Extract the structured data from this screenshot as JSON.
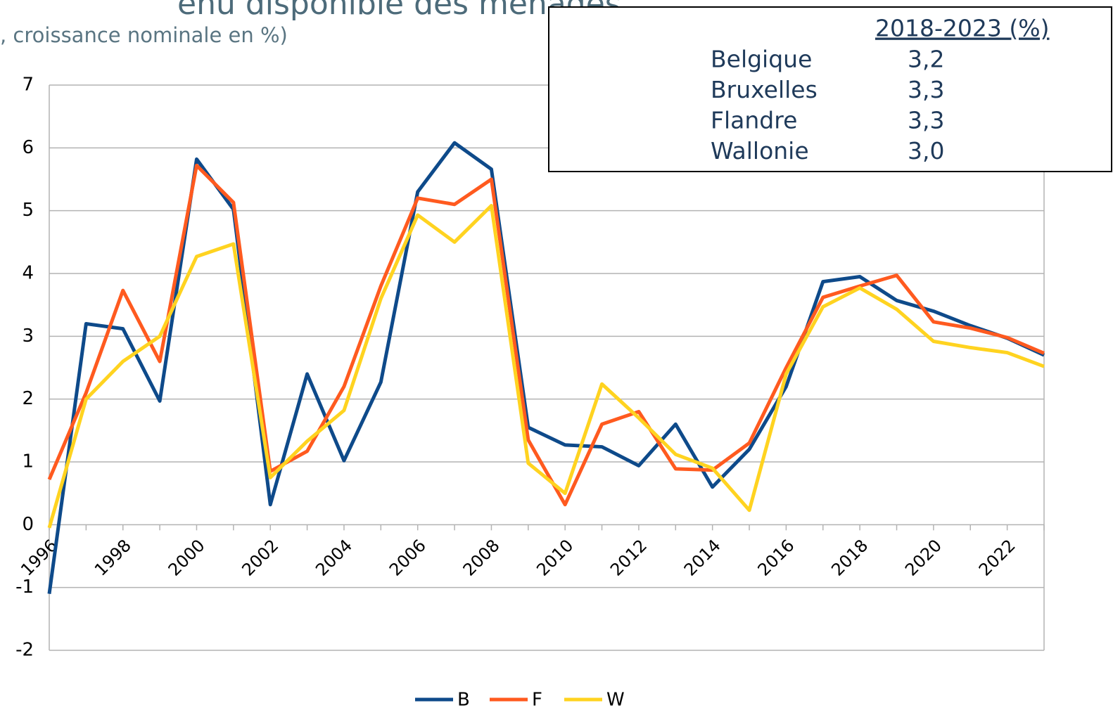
{
  "chart_data": {
    "type": "line",
    "title": "enu disponible des ménages",
    "subtitle": ", croissance nominale en %)",
    "x": [
      1996,
      1997,
      1998,
      1999,
      2000,
      2001,
      2002,
      2003,
      2004,
      2005,
      2006,
      2007,
      2008,
      2009,
      2010,
      2011,
      2012,
      2013,
      2014,
      2015,
      2016,
      2017,
      2018,
      2019,
      2020,
      2021,
      2022,
      2023
    ],
    "series": [
      {
        "name": "B",
        "color": "#0e4a8a",
        "values": [
          -1.1,
          3.2,
          3.12,
          1.97,
          5.82,
          5.02,
          0.32,
          2.4,
          1.02,
          2.27,
          5.3,
          6.08,
          5.66,
          1.55,
          1.27,
          1.24,
          0.94,
          1.6,
          0.6,
          1.2,
          2.2,
          3.87,
          3.95,
          3.57,
          3.4,
          3.17,
          2.97,
          2.7
        ]
      },
      {
        "name": "F",
        "color": "#ff5a1f",
        "values": [
          0.72,
          2.1,
          3.73,
          2.6,
          5.72,
          5.13,
          0.85,
          1.17,
          2.2,
          3.8,
          5.2,
          5.1,
          5.5,
          1.35,
          0.32,
          1.6,
          1.8,
          0.89,
          0.87,
          1.3,
          2.5,
          3.62,
          3.8,
          3.97,
          3.23,
          3.13,
          2.98,
          2.73
        ]
      },
      {
        "name": "W",
        "color": "#ffd320",
        "values": [
          -0.05,
          2.0,
          2.6,
          3.0,
          4.27,
          4.47,
          0.75,
          1.33,
          1.82,
          3.6,
          4.93,
          4.5,
          5.08,
          0.98,
          0.5,
          2.24,
          1.7,
          1.12,
          0.9,
          0.23,
          2.4,
          3.47,
          3.77,
          3.43,
          2.92,
          2.82,
          2.74,
          2.52
        ]
      }
    ],
    "xlim": [
      1996,
      2023
    ],
    "xticks": [
      1996,
      1998,
      2000,
      2002,
      2004,
      2006,
      2008,
      2010,
      2012,
      2014,
      2016,
      2018,
      2020,
      2022
    ],
    "ylim": [
      -2,
      7
    ],
    "yticks": [
      -2,
      -1,
      0,
      1,
      2,
      3,
      4,
      5,
      6,
      7
    ],
    "grid": true,
    "legend": "bottom"
  },
  "table": {
    "header": "2018-2023 (%)",
    "rows": [
      [
        "Belgique",
        "3,2"
      ],
      [
        "Bruxelles",
        "3,3"
      ],
      [
        "Flandre",
        "3,3"
      ],
      [
        "Wallonie",
        "3,0"
      ]
    ]
  }
}
